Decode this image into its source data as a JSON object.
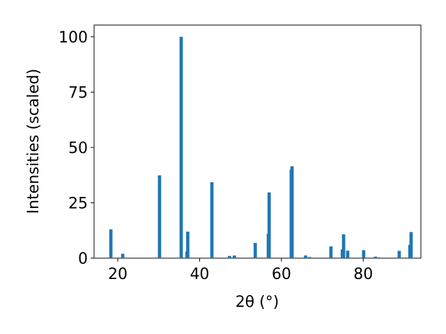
{
  "chart_data": {
    "type": "bar",
    "x_label": "2θ (°)",
    "y_label": "Intensities (scaled)",
    "x": [
      18.3,
      21.2,
      30.2,
      35.5,
      36.9,
      37.1,
      43.0,
      47.3,
      48.5,
      53.6,
      56.8,
      57.0,
      62.4,
      62.6,
      65.9,
      66.9,
      72.1,
      74.9,
      75.2,
      76.2,
      80.1,
      83.0,
      83.8,
      88.8,
      91.4,
      91.7
    ],
    "values": [
      13,
      2,
      37.4,
      100,
      3,
      12,
      34.3,
      1,
      1.2,
      6.9,
      11,
      29.7,
      40,
      41.5,
      1.2,
      0.5,
      5.3,
      4,
      10.8,
      3.4,
      3.6,
      0.7,
      0.3,
      3.3,
      6,
      11.8
    ],
    "color": "#1f77b4",
    "xlim": [
      14.2,
      94.1
    ],
    "xticks": [
      20,
      40,
      60,
      80
    ],
    "ylim": [
      0,
      105.3
    ],
    "yticks": [
      0,
      25,
      50,
      75,
      100
    ]
  }
}
